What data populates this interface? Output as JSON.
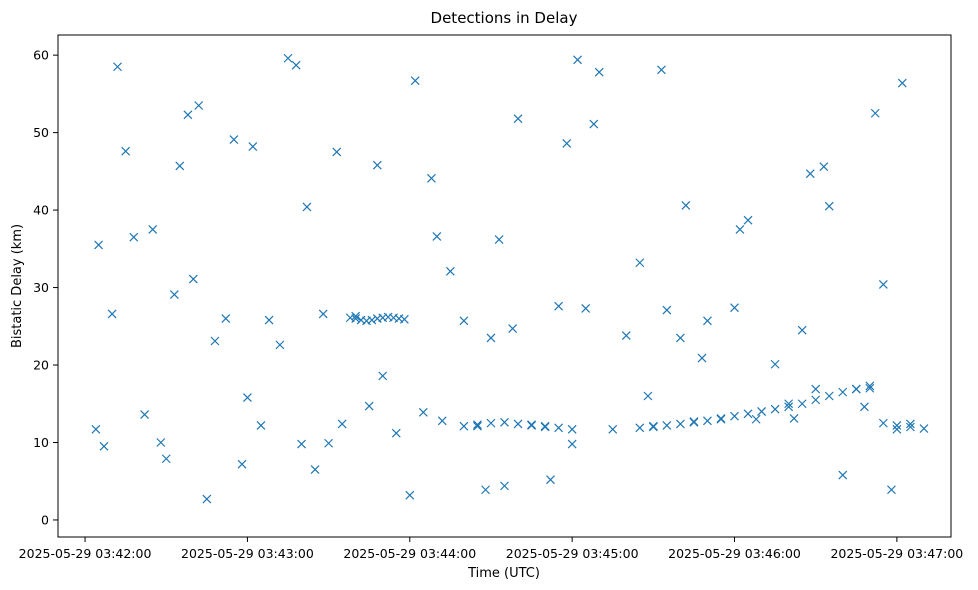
{
  "chart_data": {
    "type": "scatter",
    "title": "Detections in Delay",
    "xlabel": "Time (UTC)",
    "ylabel": "Bistatic Delay (km)",
    "x_unit": "time",
    "xlim": [
      "2025-05-29 03:41:50",
      "2025-05-29 03:47:20"
    ],
    "ylim": [
      -2.2,
      62.6
    ],
    "x_ticks": [
      "2025-05-29 03:42:00",
      "2025-05-29 03:43:00",
      "2025-05-29 03:44:00",
      "2025-05-29 03:45:00",
      "2025-05-29 03:46:00",
      "2025-05-29 03:47:00"
    ],
    "y_ticks": [
      0,
      10,
      20,
      30,
      40,
      50,
      60
    ],
    "marker": "x",
    "color": "#1f77b4",
    "grid": false,
    "legend": "none",
    "series": [
      {
        "x": [
          "2025-05-29 03:42:05",
          "2025-05-29 03:42:10",
          "2025-05-29 03:42:15",
          "2025-05-29 03:42:18",
          "2025-05-29 03:42:22",
          "2025-05-29 03:42:25",
          "2025-05-29 03:42:30",
          "2025-05-29 03:42:35",
          "2025-05-29 03:42:40",
          "2025-05-29 03:42:45",
          "2025-05-29 03:42:48",
          "2025-05-29 03:42:52",
          "2025-05-29 03:42:55",
          "2025-05-29 03:43:00",
          "2025-05-29 03:43:05",
          "2025-05-29 03:43:08",
          "2025-05-29 03:43:12",
          "2025-05-29 03:43:15",
          "2025-05-29 03:43:20",
          "2025-05-29 03:43:25",
          "2025-05-29 03:43:30",
          "2025-05-29 03:43:35",
          "2025-05-29 03:43:40",
          "2025-05-29 03:43:45",
          "2025-05-29 03:43:50",
          "2025-05-29 03:43:55",
          "2025-05-29 03:44:00",
          "2025-05-29 03:44:05",
          "2025-05-29 03:44:10",
          "2025-05-29 03:44:15",
          "2025-05-29 03:44:20",
          "2025-05-29 03:44:25",
          "2025-05-29 03:44:30",
          "2025-05-29 03:44:35",
          "2025-05-29 03:44:40",
          "2025-05-29 03:44:45",
          "2025-05-29 03:44:50",
          "2025-05-29 03:44:55",
          "2025-05-29 03:45:00",
          "2025-05-29 03:45:05",
          "2025-05-29 03:45:10",
          "2025-05-29 03:45:15",
          "2025-05-29 03:45:20",
          "2025-05-29 03:45:25",
          "2025-05-29 03:45:30",
          "2025-05-29 03:45:35",
          "2025-05-29 03:45:40",
          "2025-05-29 03:45:45",
          "2025-05-29 03:45:50",
          "2025-05-29 03:45:55",
          "2025-05-29 03:46:00",
          "2025-05-29 03:46:05",
          "2025-05-29 03:46:10",
          "2025-05-29 03:46:15",
          "2025-05-29 03:46:20",
          "2025-05-29 03:46:25",
          "2025-05-29 03:46:30",
          "2025-05-29 03:46:35",
          "2025-05-29 03:46:40",
          "2025-05-29 03:46:45",
          "2025-05-29 03:46:50",
          "2025-05-29 03:46:55",
          "2025-05-29 03:47:00",
          "2025-05-29 03:47:05",
          "2025-05-29 03:42:04",
          "2025-05-29 03:42:12",
          "2025-05-29 03:42:28",
          "2025-05-29 03:42:38",
          "2025-05-29 03:42:58",
          "2025-05-29 03:43:18",
          "2025-05-29 03:43:28",
          "2025-05-29 03:43:48",
          "2025-05-29 03:44:08",
          "2025-05-29 03:44:28",
          "2025-05-29 03:44:38",
          "2025-05-29 03:44:58",
          "2025-05-29 03:45:08",
          "2025-05-29 03:45:28",
          "2025-05-29 03:45:48",
          "2025-05-29 03:46:08",
          "2025-05-29 03:46:28",
          "2025-05-29 03:46:48",
          "2025-05-29 03:46:58",
          "2025-05-29 03:42:07",
          "2025-05-29 03:42:33",
          "2025-05-29 03:43:02",
          "2025-05-29 03:43:33",
          "2025-05-29 03:44:02",
          "2025-05-29 03:44:33",
          "2025-05-29 03:45:02",
          "2025-05-29 03:45:33",
          "2025-05-29 03:46:02",
          "2025-05-29 03:46:33",
          "2025-05-29 03:47:02",
          "2025-05-29 03:42:42",
          "2025-05-29 03:43:22",
          "2025-05-29 03:44:12",
          "2025-05-29 03:44:52",
          "2025-05-29 03:45:42",
          "2025-05-29 03:46:22",
          "2025-05-29 03:46:52",
          "2025-05-29 03:43:38",
          "2025-05-29 03:43:40",
          "2025-05-29 03:43:42",
          "2025-05-29 03:43:44",
          "2025-05-29 03:43:46",
          "2025-05-29 03:43:48",
          "2025-05-29 03:43:50",
          "2025-05-29 03:43:52",
          "2025-05-29 03:43:54",
          "2025-05-29 03:43:56",
          "2025-05-29 03:43:58",
          "2025-05-29 03:44:20",
          "2025-05-29 03:44:25",
          "2025-05-29 03:44:30",
          "2025-05-29 03:44:35",
          "2025-05-29 03:44:40",
          "2025-05-29 03:44:45",
          "2025-05-29 03:44:50",
          "2025-05-29 03:44:55",
          "2025-05-29 03:45:00",
          "2025-05-29 03:45:25",
          "2025-05-29 03:45:30",
          "2025-05-29 03:45:35",
          "2025-05-29 03:45:40",
          "2025-05-29 03:45:45",
          "2025-05-29 03:45:50",
          "2025-05-29 03:45:55",
          "2025-05-29 03:46:00",
          "2025-05-29 03:46:05",
          "2025-05-29 03:46:10",
          "2025-05-29 03:46:15",
          "2025-05-29 03:46:20",
          "2025-05-29 03:46:25",
          "2025-05-29 03:46:30",
          "2025-05-29 03:46:35",
          "2025-05-29 03:46:40",
          "2025-05-29 03:46:45",
          "2025-05-29 03:46:50",
          "2025-05-29 03:46:55",
          "2025-05-29 03:47:00",
          "2025-05-29 03:47:05",
          "2025-05-29 03:47:10"
        ],
        "y": [
          35.5,
          26.6,
          47.6,
          36.5,
          13.6,
          37.5,
          7.9,
          45.7,
          31.1,
          2.7,
          23.1,
          26.0,
          49.1,
          15.8,
          12.2,
          25.8,
          22.6,
          59.6,
          9.8,
          6.5,
          9.9,
          12.4,
          26.3,
          14.7,
          18.6,
          11.2,
          3.2,
          13.9,
          36.6,
          32.1,
          25.7,
          12.1,
          23.5,
          4.4,
          51.8,
          12.3,
          12.1,
          27.6,
          9.8,
          27.3,
          57.8,
          11.7,
          23.8,
          33.2,
          12.1,
          27.1,
          23.5,
          12.7,
          25.7,
          13.0,
          27.4,
          38.7,
          14.0,
          20.1,
          15.0,
          24.5,
          16.9,
          40.5,
          5.8,
          16.9,
          17.0,
          30.4,
          11.7,
          12.4,
          11.7,
          58.5,
          10.0,
          52.3,
          7.2,
          58.7,
          26.6,
          45.8,
          44.1,
          3.9,
          24.7,
          48.6,
          51.1,
          16.0,
          20.9,
          13.0,
          44.7,
          14.6,
          3.9,
          9.5,
          29.1,
          48.2,
          47.5,
          56.7,
          36.2,
          59.4,
          58.1,
          37.5,
          45.6,
          56.4,
          53.5,
          40.4,
          12.8,
          5.2,
          40.6,
          13.1,
          52.5,
          26.1,
          26.0,
          25.8,
          25.7,
          25.8,
          26.0,
          26.1,
          26.2,
          26.1,
          26.0,
          25.9,
          12.1,
          12.3,
          12.5,
          12.6,
          12.4,
          12.2,
          12.0,
          11.9,
          11.7,
          11.9,
          12.0,
          12.2,
          12.4,
          12.6,
          12.8,
          13.1,
          13.4,
          13.7,
          14.0,
          14.3,
          14.6,
          15.0,
          15.5,
          16.0,
          16.5,
          16.9,
          17.3,
          12.5,
          12.2,
          12.0,
          11.8
        ]
      }
    ]
  }
}
